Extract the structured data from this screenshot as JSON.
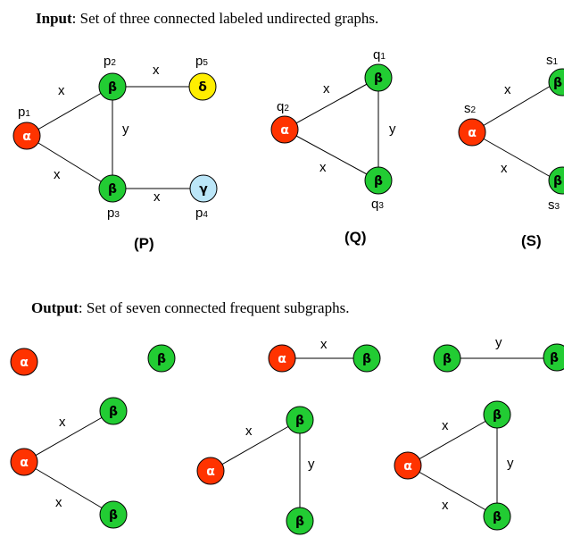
{
  "input_heading": {
    "bold": "Input",
    "rest": ": Set of  three connected labeled undirected graphs."
  },
  "output_heading": {
    "bold": "Output",
    "rest": ": Set of  seven connected frequent subgraphs."
  },
  "colors": {
    "alpha": "#ff3300",
    "beta": "#22cc33",
    "delta": "#ffee00",
    "gamma": "#bbe6f8"
  },
  "symbols": {
    "alpha": "α",
    "beta": "β",
    "delta": "δ",
    "gamma": "γ"
  },
  "graphs": {
    "P": {
      "caption": "(P)",
      "node_labels": {
        "p1": "p",
        "p2": "p",
        "p3": "p",
        "p4": "p",
        "p5": "p"
      },
      "node_subs": {
        "p1": "1",
        "p2": "2",
        "p3": "3",
        "p4": "4",
        "p5": "5"
      },
      "edge_labels": {
        "p1p2": "x",
        "p1p3": "x",
        "p2p3": "y",
        "p2p5": "x",
        "p3p4": "x"
      }
    },
    "Q": {
      "caption": "(Q)",
      "node_labels": {
        "q1": "q",
        "q2": "q",
        "q3": "q"
      },
      "node_subs": {
        "q1": "1",
        "q2": "2",
        "q3": "3"
      },
      "edge_labels": {
        "q2q1": "x",
        "q2q3": "x",
        "q1q3": "y"
      }
    },
    "S": {
      "caption": "(S)",
      "node_labels": {
        "s1": "s",
        "s2": "s",
        "s3": "s"
      },
      "node_subs": {
        "s1": "1",
        "s2": "2",
        "s3": "3"
      },
      "edge_labels": {
        "s2s1": "x",
        "s2s3": "x"
      }
    }
  },
  "subgraphs": {
    "sg3": {
      "edge": "x"
    },
    "sg4": {
      "edge": "y"
    },
    "sg5": {
      "top": "x",
      "bottom": "x"
    },
    "sg6": {
      "x": "x",
      "y": "y"
    },
    "sg7": {
      "top": "x",
      "bottom": "x",
      "right": "y"
    }
  }
}
